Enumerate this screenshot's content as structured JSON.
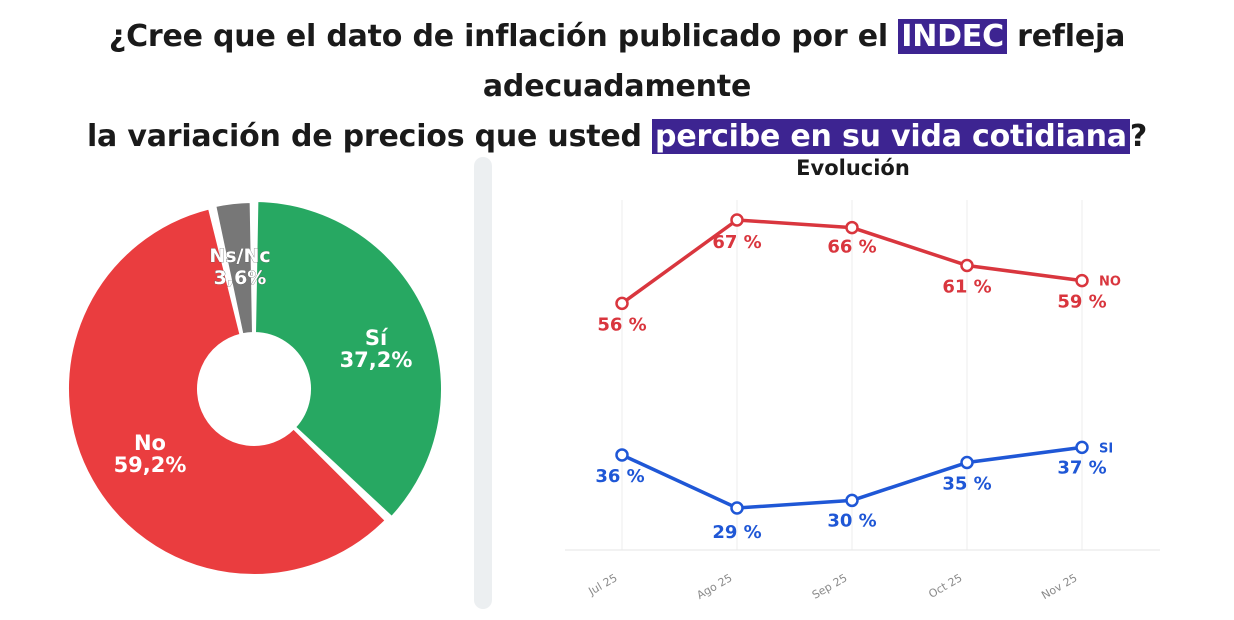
{
  "title": {
    "part1": "¿Cree que el dato de inflación publicado por el ",
    "highlight1": "INDEC",
    "part2": " refleja adecuadamente",
    "part3": "la variación de precios que usted ",
    "highlight2": "percibe en su vida cotidiana",
    "part4": "?"
  },
  "colors": {
    "highlight": "#3d2491",
    "si": "#27a862",
    "no": "#ea3d3f",
    "nsnc": "#777777",
    "line_no": "#d9363e",
    "line_si": "#1f57d6"
  },
  "chart_data": [
    {
      "type": "pie",
      "donut": true,
      "slices": [
        {
          "label": "Sí",
          "value": 37.2,
          "display": "37,2%"
        },
        {
          "label": "No",
          "value": 59.2,
          "display": "59,2%"
        },
        {
          "label": "Ns/Nc",
          "value": 3.6,
          "display": "3,6%"
        }
      ]
    },
    {
      "type": "line",
      "title": "Evolución",
      "categories": [
        "Jul 25",
        "Ago 25",
        "Sep 25",
        "Oct 25",
        "Nov 25"
      ],
      "ylim": [
        20,
        70
      ],
      "series": [
        {
          "name": "NO",
          "values": [
            56,
            67,
            66,
            61,
            59
          ],
          "labels": [
            "56 %",
            "67 %",
            "66 %",
            "61 %",
            "59 %"
          ]
        },
        {
          "name": "SI",
          "values": [
            36,
            29,
            30,
            35,
            37
          ],
          "labels": [
            "36 %",
            "29 %",
            "30 %",
            "35 %",
            "37 %"
          ]
        }
      ]
    }
  ]
}
